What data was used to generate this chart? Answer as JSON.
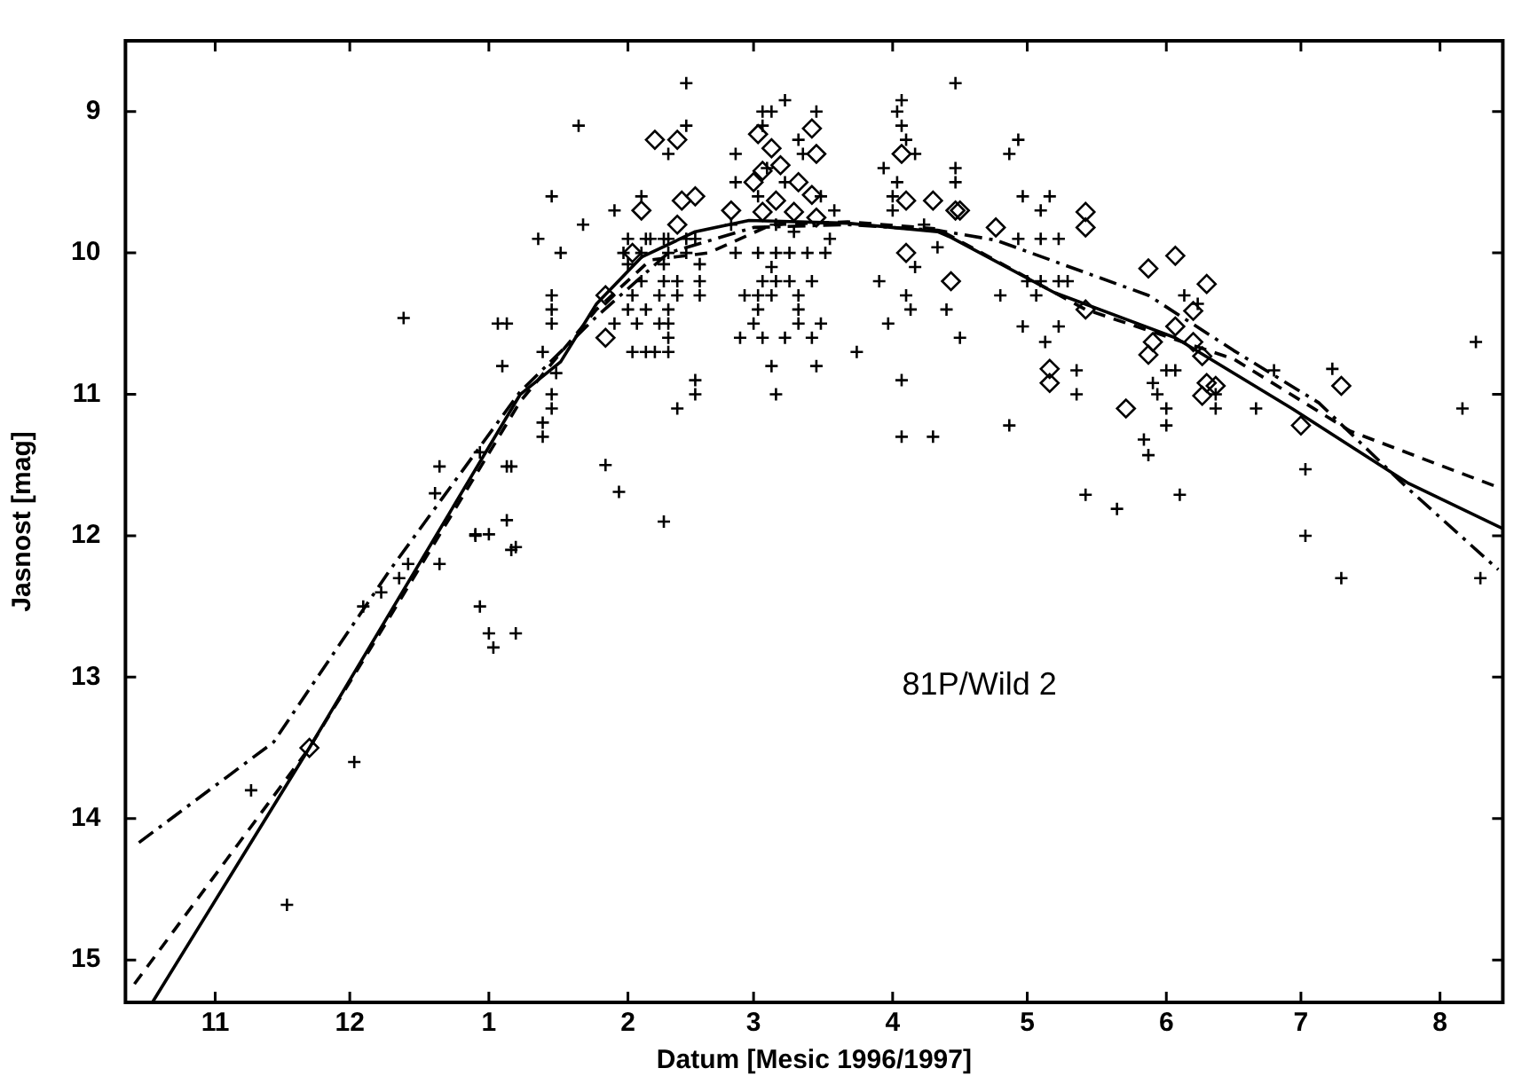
{
  "chart_data": {
    "type": "scatter",
    "xlabel": "Datum [Mesic 1996/1997]",
    "ylabel": "Jasnost [mag]",
    "xlim": [
      "1996-10-12",
      "1997-08-15"
    ],
    "xticks": [
      {
        "value": "1996-11-01",
        "label": "11"
      },
      {
        "value": "1996-12-01",
        "label": "12"
      },
      {
        "value": "1997-01-01",
        "label": "1"
      },
      {
        "value": "1997-02-01",
        "label": "2"
      },
      {
        "value": "1997-03-01",
        "label": "3"
      },
      {
        "value": "1997-04-01",
        "label": "4"
      },
      {
        "value": "1997-05-01",
        "label": "5"
      },
      {
        "value": "1997-06-01",
        "label": "6"
      },
      {
        "value": "1997-07-01",
        "label": "7"
      },
      {
        "value": "1997-08-01",
        "label": "8"
      }
    ],
    "ylim": [
      15.3,
      8.5
    ],
    "yticks": [
      9,
      10,
      11,
      12,
      13,
      14,
      15
    ],
    "grid": false,
    "legend": false,
    "annotations": [
      "81P/Wild 2"
    ],
    "series": [
      {
        "type": "scatter",
        "marker": "cross",
        "color": "#000000",
        "x": [
          "1996-11-09",
          "1996-11-17",
          "1996-12-02",
          "1996-12-13",
          "1996-12-04",
          "1996-12-08",
          "1996-12-12",
          "1996-12-14",
          "1996-12-21",
          "1996-12-20",
          "1996-12-21",
          "1996-12-30",
          "1996-12-29",
          "1997-01-01",
          "1996-12-30",
          "1997-01-01",
          "1997-01-02",
          "1997-01-07",
          "1997-01-03",
          "1997-01-05",
          "1997-01-04",
          "1997-01-05",
          "1997-01-06",
          "1997-01-05",
          "1997-01-06",
          "1997-01-21",
          "1997-01-15",
          "1997-01-12",
          "1997-01-17",
          "1997-01-22",
          "1997-01-15",
          "1997-01-15",
          "1997-01-15",
          "1997-01-13",
          "1997-01-16",
          "1997-01-15",
          "1997-01-15",
          "1997-01-13",
          "1997-01-13",
          "1996-12-29",
          "1997-01-07",
          "1997-01-27",
          "1997-01-30",
          "1997-02-09",
          "1997-02-16",
          "1997-02-16",
          "1997-02-12",
          "1997-02-14",
          "1997-02-14",
          "1997-02-10",
          "1997-01-29",
          "1997-02-04",
          "1997-02-05",
          "1997-02-09",
          "1997-02-14",
          "1997-02-01",
          "1997-02-06",
          "1997-02-10",
          "1997-02-16",
          "1997-01-31",
          "1997-02-04",
          "1997-02-10",
          "1997-02-14",
          "1997-02-01",
          "1997-02-09",
          "1997-02-17",
          "1997-02-04",
          "1997-02-09",
          "1997-02-12",
          "1997-02-17",
          "1997-02-02",
          "1997-02-08",
          "1997-02-12",
          "1997-02-17",
          "1997-02-01",
          "1997-02-05",
          "1997-02-10",
          "1997-01-29",
          "1997-02-03",
          "1997-02-08",
          "1997-02-10",
          "1997-02-10",
          "1997-02-02",
          "1997-02-05",
          "1997-02-07",
          "1997-02-10",
          "1997-03-08",
          "1997-03-03",
          "1997-03-05",
          "1997-03-15",
          "1997-03-03",
          "1997-03-11",
          "1997-02-25",
          "1997-02-25",
          "1997-03-02",
          "1997-03-19",
          "1997-02-24",
          "1997-02-25",
          "1997-03-02",
          "1997-03-06",
          "1997-03-09",
          "1997-03-13",
          "1997-03-17",
          "1997-03-18",
          "1997-03-05",
          "1997-03-06",
          "1997-03-03",
          "1997-03-09",
          "1997-03-14",
          "1997-02-27",
          "1997-03-02",
          "1997-03-05",
          "1997-03-11",
          "1997-03-11",
          "1997-03-02",
          "1997-03-01",
          "1997-03-11",
          "1997-03-16",
          "1997-02-26",
          "1997-03-03",
          "1997-03-08",
          "1997-03-14",
          "1997-03-05",
          "1997-03-15",
          "1997-03-06",
          "1997-03-24",
          "1997-03-04",
          "1997-03-08",
          "1997-03-12",
          "1997-03-16",
          "1997-03-06",
          "1997-03-10",
          "1997-04-03",
          "1997-04-02",
          "1997-04-03",
          "1997-04-04",
          "1997-04-06",
          "1997-03-30",
          "1997-04-15",
          "1997-04-15",
          "1997-04-02",
          "1997-04-01",
          "1997-04-11",
          "1997-04-06",
          "1997-03-29",
          "1997-04-04",
          "1997-04-05",
          "1997-04-13",
          "1997-03-31",
          "1997-04-16",
          "1997-04-03",
          "1997-04-03",
          "1997-04-10",
          "1997-04-15",
          "1997-04-01",
          "1997-04-08",
          "1997-04-29",
          "1997-04-27",
          "1997-04-30",
          "1997-05-06",
          "1997-05-04",
          "1997-04-29",
          "1997-05-04",
          "1997-05-08",
          "1997-04-25",
          "1997-05-01",
          "1997-05-04",
          "1997-05-08",
          "1997-05-10",
          "1997-05-03",
          "1997-04-30",
          "1997-05-08",
          "1997-05-05",
          "1997-05-12",
          "1997-05-12",
          "1997-04-27",
          "1997-05-14",
          "1997-05-21",
          "1997-06-04",
          "1997-05-29",
          "1997-05-30",
          "1997-06-01",
          "1997-06-01",
          "1997-05-27",
          "1997-05-28",
          "1997-06-01",
          "1997-06-03",
          "1997-06-05",
          "1997-06-08",
          "1997-06-12",
          "1997-06-12",
          "1997-06-21",
          "1997-06-25",
          "1997-07-02",
          "1997-07-02",
          "1997-07-10",
          "1997-07-08",
          "1997-08-06",
          "1997-08-10",
          "1997-08-09"
        ],
        "values": [
          13.8,
          14.61,
          13.6,
          10.46,
          12.5,
          12.4,
          12.3,
          12.2,
          11.51,
          11.7,
          12.2,
          11.41,
          11.99,
          11.99,
          12.5,
          12.69,
          12.79,
          12.69,
          10.5,
          10.5,
          10.8,
          11.51,
          11.51,
          11.89,
          12.1,
          9.1,
          9.6,
          9.9,
          10.0,
          9.8,
          10.3,
          10.4,
          10.5,
          10.7,
          10.85,
          11.0,
          11.1,
          11.2,
          11.3,
          12.0,
          12.08,
          11.5,
          11.69,
          11.9,
          10.9,
          11.0,
          11.1,
          8.8,
          9.1,
          9.3,
          9.7,
          9.6,
          9.9,
          9.9,
          9.9,
          9.9,
          9.9,
          9.9,
          9.9,
          10.0,
          10.0,
          10.0,
          10.0,
          10.08,
          10.08,
          10.08,
          10.2,
          10.2,
          10.2,
          10.2,
          10.3,
          10.3,
          10.3,
          10.3,
          10.4,
          10.4,
          10.4,
          10.5,
          10.5,
          10.5,
          10.5,
          10.6,
          10.7,
          10.7,
          10.7,
          10.7,
          8.92,
          9.0,
          9.0,
          9.0,
          9.1,
          9.2,
          9.3,
          9.5,
          9.6,
          9.7,
          9.8,
          10.0,
          10.0,
          10.0,
          10.0,
          10.0,
          10.0,
          9.9,
          10.1,
          10.2,
          10.2,
          10.2,
          10.2,
          10.3,
          10.3,
          10.3,
          10.3,
          10.4,
          10.4,
          10.5,
          10.5,
          10.5,
          10.6,
          10.6,
          10.6,
          10.6,
          10.8,
          10.8,
          11.0,
          10.7,
          9.4,
          9.5,
          9.3,
          9.6,
          9.8,
          9.85,
          8.92,
          9.0,
          9.1,
          9.2,
          9.3,
          9.4,
          9.4,
          9.5,
          9.5,
          9.6,
          9.96,
          10.1,
          10.2,
          10.3,
          10.4,
          10.4,
          10.5,
          10.6,
          10.9,
          11.3,
          11.3,
          8.8,
          9.7,
          9.8,
          9.2,
          9.3,
          9.6,
          9.6,
          9.7,
          9.9,
          9.9,
          9.9,
          10.3,
          10.2,
          10.2,
          10.2,
          10.2,
          10.3,
          10.52,
          10.52,
          10.63,
          10.83,
          11.0,
          11.22,
          11.71,
          11.81,
          11.71,
          10.92,
          11.0,
          11.1,
          11.22,
          11.32,
          11.43,
          10.83,
          10.83,
          10.3,
          10.36,
          11.1,
          11.0,
          11.1,
          10.83,
          11.53,
          12.0,
          12.3,
          10.82,
          11.1,
          12.3,
          10.63
        ]
      },
      {
        "type": "scatter",
        "marker": "diamond",
        "color": "#000000",
        "x": [
          "1996-11-22",
          "1997-02-07",
          "1997-02-12",
          "1997-02-16",
          "1997-02-13",
          "1997-02-04",
          "1997-02-12",
          "1997-02-02",
          "1997-01-27",
          "1997-01-27",
          "1997-02-24",
          "1997-03-02",
          "1997-03-14",
          "1997-03-15",
          "1997-03-05",
          "1997-03-03",
          "1997-03-07",
          "1997-03-11",
          "1997-03-14",
          "1997-03-06",
          "1997-03-01",
          "1997-03-10",
          "1997-03-03",
          "1997-03-15",
          "1997-04-03",
          "1997-04-04",
          "1997-04-10",
          "1997-04-15",
          "1997-04-04",
          "1997-04-14",
          "1997-04-16",
          "1997-04-24",
          "1997-05-14",
          "1997-05-14",
          "1997-05-14",
          "1997-05-06",
          "1997-05-06",
          "1997-05-23",
          "1997-05-28",
          "1997-06-03",
          "1997-06-10",
          "1997-06-07",
          "1997-06-03",
          "1997-05-29",
          "1997-05-28",
          "1997-06-07",
          "1997-06-09",
          "1997-06-10",
          "1997-06-09",
          "1997-06-12",
          "1997-07-01",
          "1997-07-10"
        ],
        "values": [
          13.5,
          9.2,
          9.2,
          9.6,
          9.63,
          9.7,
          9.8,
          10.0,
          10.3,
          10.6,
          9.7,
          9.16,
          9.12,
          9.3,
          9.26,
          9.42,
          9.38,
          9.5,
          9.59,
          9.63,
          9.5,
          9.71,
          9.71,
          9.75,
          9.3,
          9.63,
          9.63,
          9.7,
          10.0,
          10.2,
          9.7,
          9.82,
          9.71,
          9.82,
          10.4,
          10.82,
          10.92,
          11.1,
          10.11,
          10.02,
          10.22,
          10.41,
          10.52,
          10.63,
          10.72,
          10.63,
          10.73,
          10.92,
          11.01,
          10.94,
          11.22,
          10.94
        ]
      },
      {
        "type": "line",
        "line_style": "solid",
        "marker": "none",
        "color": "#000000",
        "x": [
          "1996-10-18",
          "1996-11-22",
          "1997-01-08",
          "1997-01-17",
          "1997-01-25",
          "1997-02-04",
          "1997-02-16",
          "1997-02-28",
          "1997-03-22",
          "1997-04-11",
          "1997-04-14",
          "1997-05-07",
          "1997-06-03",
          "1997-06-29",
          "1997-07-25",
          "1997-08-15"
        ],
        "values": [
          15.3,
          13.5,
          11.0,
          10.77,
          10.36,
          10.03,
          9.85,
          9.77,
          9.79,
          9.85,
          9.89,
          10.28,
          10.6,
          11.1,
          11.63,
          11.95
        ]
      },
      {
        "type": "line",
        "line_style": "dashed",
        "marker": "none",
        "color": "#000000",
        "x": [
          "1996-10-14",
          "1996-11-22",
          "1996-12-10",
          "1997-01-08",
          "1997-01-25",
          "1997-02-06",
          "1997-02-19",
          "1997-03-05",
          "1997-03-22",
          "1997-04-11",
          "1997-05-14",
          "1997-06-16",
          "1997-07-12",
          "1997-08-15"
        ],
        "values": [
          15.17,
          13.5,
          12.57,
          11.05,
          10.4,
          10.05,
          10.0,
          9.8,
          9.78,
          9.83,
          10.4,
          10.75,
          11.26,
          11.67
        ]
      },
      {
        "type": "line",
        "line_style": "dashdot",
        "marker": "none",
        "color": "#000000",
        "x": [
          "1996-10-15",
          "1996-11-14",
          "1996-12-10",
          "1997-01-08",
          "1997-01-25",
          "1997-02-10",
          "1997-03-01",
          "1997-03-22",
          "1997-04-11",
          "1997-04-24",
          "1997-05-28",
          "1997-06-16",
          "1997-07-05",
          "1997-07-25",
          "1997-08-14"
        ],
        "values": [
          14.17,
          13.46,
          12.24,
          10.98,
          10.45,
          10.0,
          9.82,
          9.8,
          9.84,
          9.91,
          10.3,
          10.69,
          11.06,
          11.67,
          12.24
        ]
      }
    ]
  }
}
